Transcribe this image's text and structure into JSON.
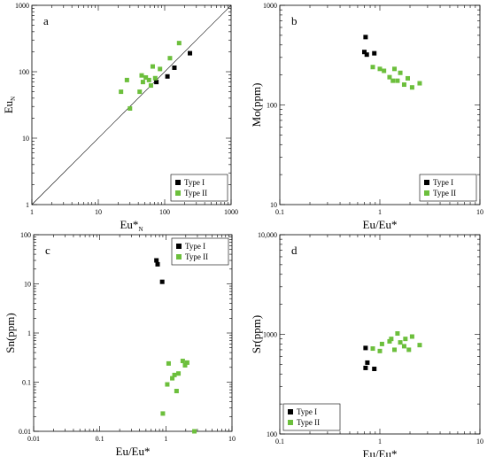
{
  "colors": {
    "type1": "#000000",
    "type2": "#6cbf3c"
  },
  "chart_data": [
    {
      "panel": "a",
      "type": "scatter",
      "xlabel": "Eu*",
      "xlabel_sub": "N",
      "ylabel": "Eu",
      "ylabel_sub": "N",
      "xscale": "log",
      "yscale": "log",
      "xlim": [
        1,
        1000
      ],
      "ylim": [
        1,
        1000
      ],
      "xticks": [
        1,
        10,
        100,
        1000
      ],
      "xtick_labels": [
        "1",
        "10",
        "100",
        "1000"
      ],
      "yticks": [
        1,
        10,
        100,
        1000
      ],
      "ytick_labels": [
        "1",
        "10",
        "100",
        "1000"
      ],
      "reference_line": "y = x",
      "legend_position": "bottom-right",
      "series": [
        {
          "name": "Type I",
          "x": [
            75,
            110,
            140,
            240
          ],
          "y": [
            70,
            85,
            115,
            190
          ]
        },
        {
          "name": "Type II",
          "x": [
            22,
            27,
            30,
            42,
            45,
            47,
            52,
            58,
            62,
            66,
            72,
            85,
            120,
            165
          ],
          "y": [
            50,
            75,
            28,
            50,
            88,
            70,
            82,
            75,
            62,
            120,
            80,
            110,
            160,
            270
          ]
        }
      ]
    },
    {
      "panel": "b",
      "type": "scatter",
      "xlabel": "Eu/Eu*",
      "ylabel": "Mo(ppm)",
      "xscale": "log",
      "yscale": "log",
      "xlim": [
        0.1,
        10
      ],
      "ylim": [
        10,
        1000
      ],
      "xticks": [
        0.1,
        1,
        10
      ],
      "xtick_labels": [
        "0.1",
        "1",
        "10"
      ],
      "yticks": [
        10,
        100,
        1000
      ],
      "ytick_labels": [
        "10",
        "100",
        "1000"
      ],
      "legend_position": "bottom-right",
      "series": [
        {
          "name": "Type I",
          "x": [
            0.72,
            0.7,
            0.74,
            0.88
          ],
          "y": [
            480,
            340,
            320,
            330
          ]
        },
        {
          "name": "Type II",
          "x": [
            0.85,
            1.0,
            1.1,
            1.25,
            1.35,
            1.4,
            1.5,
            1.6,
            1.75,
            1.9,
            2.1,
            2.5
          ],
          "y": [
            240,
            230,
            220,
            190,
            175,
            230,
            175,
            210,
            160,
            185,
            150,
            165
          ]
        }
      ]
    },
    {
      "panel": "c",
      "type": "scatter",
      "xlabel": "Eu/Eu*",
      "ylabel": "Sn(ppm)",
      "xscale": "log",
      "yscale": "log",
      "xlim": [
        0.01,
        10
      ],
      "ylim": [
        0.01,
        100
      ],
      "xticks": [
        0.01,
        0.1,
        1,
        10
      ],
      "xtick_labels": [
        "0.01",
        "0.1",
        "1",
        "10"
      ],
      "yticks": [
        0.01,
        0.1,
        1,
        10,
        100
      ],
      "ytick_labels": [
        "0.01",
        "0.1",
        "1",
        "10",
        "100"
      ],
      "legend_position": "top-right",
      "series": [
        {
          "name": "Type I",
          "x": [
            0.72,
            0.75,
            0.88
          ],
          "y": [
            30,
            25,
            11
          ]
        },
        {
          "name": "Type II",
          "x": [
            0.9,
            1.05,
            1.1,
            1.25,
            1.35,
            1.45,
            1.55,
            1.8,
            1.95,
            2.1,
            2.7
          ],
          "y": [
            0.023,
            0.09,
            0.24,
            0.12,
            0.14,
            0.066,
            0.15,
            0.27,
            0.22,
            0.25,
            0.01
          ]
        }
      ]
    },
    {
      "panel": "d",
      "type": "scatter",
      "xlabel": "Eu/Eu*",
      "ylabel": "Sr(ppm)",
      "xscale": "log",
      "yscale": "log",
      "xlim": [
        0.1,
        10
      ],
      "ylim": [
        100,
        10000
      ],
      "xticks": [
        0.1,
        1,
        10
      ],
      "xtick_labels": [
        "0.1",
        "1",
        "10"
      ],
      "yticks": [
        100,
        1000,
        10000
      ],
      "ytick_labels": [
        "100",
        "1000",
        "10,000"
      ],
      "legend_position": "bottom-left",
      "series": [
        {
          "name": "Type I",
          "x": [
            0.72,
            0.75,
            0.72,
            0.88
          ],
          "y": [
            730,
            520,
            460,
            450
          ]
        },
        {
          "name": "Type II",
          "x": [
            0.85,
            1.0,
            1.05,
            1.25,
            1.3,
            1.4,
            1.5,
            1.6,
            1.75,
            1.8,
            1.95,
            2.1,
            2.5
          ],
          "y": [
            720,
            680,
            800,
            850,
            900,
            700,
            1020,
            830,
            760,
            900,
            700,
            950,
            780
          ]
        }
      ]
    }
  ]
}
